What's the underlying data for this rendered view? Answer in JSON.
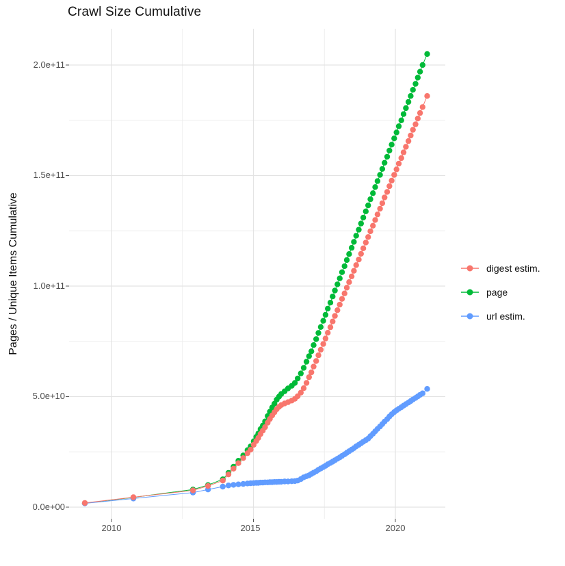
{
  "window": {
    "title": "Crawl Size Cumulative plot"
  },
  "colors": {
    "series_digest": "#F8766D",
    "series_page": "#00BA38",
    "series_url": "#619CFF",
    "grid_major": "#E3E3E3",
    "grid_minor": "#EDEDED",
    "axis_text": "#4d4d4d",
    "tick_mark": "#555555",
    "background": "#FFFFFF"
  },
  "chart_data": {
    "type": "line",
    "title": "Crawl Size Cumulative",
    "xlabel": "",
    "ylabel": "Pages / Unique Items Cumulative",
    "value_unit": "billions (1e9) of pages / unique items",
    "x_range_years": [
      2008.5,
      2021.75
    ],
    "y_range_billions": [
      -8,
      216
    ],
    "x_ticks": [
      2010,
      2015,
      2020
    ],
    "x_tick_labels": [
      "2010",
      "2015",
      "2020"
    ],
    "x_minor_ticks": [
      2012.5,
      2017.5
    ],
    "y_ticks_billions": [
      0,
      50,
      100,
      150,
      200
    ],
    "y_tick_labels": [
      "0.0e+00",
      "5.0e+10",
      "1.0e+11",
      "1.5e+11",
      "2.0e+11"
    ],
    "y_minor_ticks_billions": [
      25,
      75,
      125,
      175
    ],
    "grid": "on",
    "legend_position": "right",
    "legend": [
      {
        "label": "digest estim.",
        "color": "#F8766D"
      },
      {
        "label": "page",
        "color": "#00BA38"
      },
      {
        "label": "url estim.",
        "color": "#619CFF"
      }
    ],
    "series": [
      {
        "name": "page",
        "color": "#00BA38",
        "points": [
          [
            2009.06,
            1.8
          ],
          [
            2010.77,
            4.4
          ],
          [
            2012.87,
            8.0
          ],
          [
            2013.4,
            10.0
          ],
          [
            2013.92,
            12.6
          ],
          [
            2014.12,
            15.5
          ],
          [
            2014.3,
            18.3
          ],
          [
            2014.47,
            21.0
          ],
          [
            2014.64,
            23.4
          ],
          [
            2014.79,
            25.8
          ],
          [
            2014.9,
            27.5
          ],
          [
            2015.01,
            29.8
          ],
          [
            2015.1,
            31.8
          ],
          [
            2015.17,
            33.3
          ],
          [
            2015.25,
            35.3
          ],
          [
            2015.33,
            36.9
          ],
          [
            2015.41,
            38.8
          ],
          [
            2015.5,
            41.2
          ],
          [
            2015.58,
            43.2
          ],
          [
            2015.66,
            45.1
          ],
          [
            2015.74,
            46.8
          ],
          [
            2015.82,
            48.6
          ],
          [
            2015.9,
            50.0
          ],
          [
            2015.98,
            51.2
          ],
          [
            2016.1,
            52.4
          ],
          [
            2016.22,
            53.7
          ],
          [
            2016.35,
            54.9
          ],
          [
            2016.46,
            56.2
          ],
          [
            2016.56,
            58.2
          ],
          [
            2016.67,
            60.5
          ],
          [
            2016.77,
            63.0
          ],
          [
            2016.87,
            65.8
          ],
          [
            2016.96,
            68.3
          ],
          [
            2017.04,
            70.5
          ],
          [
            2017.12,
            73.3
          ],
          [
            2017.21,
            76.0
          ],
          [
            2017.29,
            78.8
          ],
          [
            2017.37,
            81.5
          ],
          [
            2017.46,
            84.3
          ],
          [
            2017.54,
            87.0
          ],
          [
            2017.62,
            89.8
          ],
          [
            2017.71,
            92.5
          ],
          [
            2017.79,
            95.3
          ],
          [
            2017.87,
            98.0
          ],
          [
            2017.96,
            100.8
          ],
          [
            2018.04,
            103.5
          ],
          [
            2018.12,
            106.3
          ],
          [
            2018.21,
            109.0
          ],
          [
            2018.29,
            111.8
          ],
          [
            2018.37,
            114.5
          ],
          [
            2018.46,
            117.3
          ],
          [
            2018.54,
            120.0
          ],
          [
            2018.62,
            122.8
          ],
          [
            2018.71,
            125.5
          ],
          [
            2018.79,
            128.3
          ],
          [
            2018.87,
            131.0
          ],
          [
            2018.96,
            133.8
          ],
          [
            2019.04,
            136.5
          ],
          [
            2019.12,
            139.3
          ],
          [
            2019.21,
            142.0
          ],
          [
            2019.29,
            144.8
          ],
          [
            2019.37,
            147.5
          ],
          [
            2019.46,
            150.3
          ],
          [
            2019.54,
            153.0
          ],
          [
            2019.62,
            155.8
          ],
          [
            2019.71,
            158.5
          ],
          [
            2019.79,
            161.3
          ],
          [
            2019.87,
            164.0
          ],
          [
            2019.96,
            166.8
          ],
          [
            2020.04,
            169.5
          ],
          [
            2020.12,
            172.3
          ],
          [
            2020.21,
            175.0
          ],
          [
            2020.29,
            177.8
          ],
          [
            2020.37,
            180.5
          ],
          [
            2020.46,
            183.3
          ],
          [
            2020.54,
            186.0
          ],
          [
            2020.62,
            188.8
          ],
          [
            2020.71,
            191.5
          ],
          [
            2020.79,
            194.3
          ],
          [
            2020.87,
            197.0
          ],
          [
            2020.96,
            200.0
          ],
          [
            2021.12,
            205.0
          ]
        ]
      },
      {
        "name": "url estim.",
        "color": "#619CFF",
        "points": [
          [
            2009.06,
            1.7
          ],
          [
            2010.77,
            3.9
          ],
          [
            2012.87,
            6.6
          ],
          [
            2013.4,
            8.0
          ],
          [
            2013.92,
            9.3
          ],
          [
            2014.12,
            9.8
          ],
          [
            2014.3,
            10.1
          ],
          [
            2014.47,
            10.3
          ],
          [
            2014.64,
            10.5
          ],
          [
            2014.79,
            10.7
          ],
          [
            2014.9,
            10.8
          ],
          [
            2015.01,
            10.9
          ],
          [
            2015.1,
            11.0
          ],
          [
            2015.17,
            11.0
          ],
          [
            2015.25,
            11.1
          ],
          [
            2015.33,
            11.1
          ],
          [
            2015.41,
            11.2
          ],
          [
            2015.5,
            11.2
          ],
          [
            2015.58,
            11.3
          ],
          [
            2015.66,
            11.3
          ],
          [
            2015.74,
            11.4
          ],
          [
            2015.82,
            11.4
          ],
          [
            2015.9,
            11.5
          ],
          [
            2015.98,
            11.5
          ],
          [
            2016.1,
            11.6
          ],
          [
            2016.22,
            11.6
          ],
          [
            2016.35,
            11.7
          ],
          [
            2016.46,
            11.8
          ],
          [
            2016.56,
            12.0
          ],
          [
            2016.67,
            12.7
          ],
          [
            2016.77,
            13.5
          ],
          [
            2016.87,
            14.0
          ],
          [
            2016.96,
            14.4
          ],
          [
            2017.04,
            15.0
          ],
          [
            2017.12,
            15.6
          ],
          [
            2017.21,
            16.2
          ],
          [
            2017.29,
            16.9
          ],
          [
            2017.37,
            17.5
          ],
          [
            2017.46,
            18.1
          ],
          [
            2017.54,
            18.7
          ],
          [
            2017.62,
            19.4
          ],
          [
            2017.71,
            20.0
          ],
          [
            2017.79,
            20.6
          ],
          [
            2017.87,
            21.2
          ],
          [
            2017.96,
            21.9
          ],
          [
            2018.04,
            22.5
          ],
          [
            2018.12,
            23.2
          ],
          [
            2018.21,
            23.9
          ],
          [
            2018.29,
            24.6
          ],
          [
            2018.37,
            25.3
          ],
          [
            2018.46,
            26.0
          ],
          [
            2018.54,
            26.7
          ],
          [
            2018.62,
            27.5
          ],
          [
            2018.71,
            28.2
          ],
          [
            2018.79,
            28.9
          ],
          [
            2018.87,
            29.6
          ],
          [
            2018.96,
            30.3
          ],
          [
            2019.04,
            31.0
          ],
          [
            2019.12,
            32.1
          ],
          [
            2019.21,
            33.2
          ],
          [
            2019.29,
            34.3
          ],
          [
            2019.37,
            35.4
          ],
          [
            2019.46,
            36.5
          ],
          [
            2019.54,
            37.6
          ],
          [
            2019.62,
            38.7
          ],
          [
            2019.71,
            39.8
          ],
          [
            2019.79,
            41.0
          ],
          [
            2019.87,
            42.0
          ],
          [
            2019.96,
            43.0
          ],
          [
            2020.04,
            43.8
          ],
          [
            2020.12,
            44.5
          ],
          [
            2020.21,
            45.2
          ],
          [
            2020.29,
            45.9
          ],
          [
            2020.37,
            46.6
          ],
          [
            2020.46,
            47.3
          ],
          [
            2020.54,
            48.0
          ],
          [
            2020.62,
            48.7
          ],
          [
            2020.71,
            49.4
          ],
          [
            2020.79,
            50.1
          ],
          [
            2020.87,
            50.8
          ],
          [
            2020.96,
            51.5
          ],
          [
            2021.12,
            53.5
          ]
        ]
      },
      {
        "name": "digest estim.",
        "color": "#F8766D",
        "points": [
          [
            2009.06,
            1.9
          ],
          [
            2010.77,
            4.5
          ],
          [
            2012.87,
            7.6
          ],
          [
            2013.4,
            9.6
          ],
          [
            2013.92,
            12.0
          ],
          [
            2014.12,
            14.8
          ],
          [
            2014.3,
            17.4
          ],
          [
            2014.47,
            19.9
          ],
          [
            2014.64,
            22.2
          ],
          [
            2014.79,
            24.4
          ],
          [
            2014.9,
            26.0
          ],
          [
            2015.01,
            28.2
          ],
          [
            2015.1,
            29.9
          ],
          [
            2015.17,
            31.3
          ],
          [
            2015.25,
            33.1
          ],
          [
            2015.33,
            34.6
          ],
          [
            2015.41,
            36.2
          ],
          [
            2015.5,
            38.2
          ],
          [
            2015.58,
            39.9
          ],
          [
            2015.66,
            41.5
          ],
          [
            2015.74,
            42.9
          ],
          [
            2015.82,
            44.3
          ],
          [
            2015.9,
            45.4
          ],
          [
            2015.98,
            46.2
          ],
          [
            2016.1,
            46.9
          ],
          [
            2016.22,
            47.5
          ],
          [
            2016.35,
            48.2
          ],
          [
            2016.46,
            49.0
          ],
          [
            2016.56,
            50.2
          ],
          [
            2016.67,
            51.8
          ],
          [
            2016.77,
            53.8
          ],
          [
            2016.87,
            56.2
          ],
          [
            2016.96,
            58.8
          ],
          [
            2017.04,
            61.0
          ],
          [
            2017.12,
            63.6
          ],
          [
            2017.21,
            66.1
          ],
          [
            2017.29,
            68.7
          ],
          [
            2017.37,
            71.2
          ],
          [
            2017.46,
            73.8
          ],
          [
            2017.54,
            76.3
          ],
          [
            2017.62,
            78.9
          ],
          [
            2017.71,
            81.4
          ],
          [
            2017.79,
            84.0
          ],
          [
            2017.87,
            86.5
          ],
          [
            2017.96,
            89.1
          ],
          [
            2018.04,
            91.6
          ],
          [
            2018.12,
            94.2
          ],
          [
            2018.21,
            96.7
          ],
          [
            2018.29,
            99.3
          ],
          [
            2018.37,
            101.8
          ],
          [
            2018.46,
            104.4
          ],
          [
            2018.54,
            106.9
          ],
          [
            2018.62,
            109.5
          ],
          [
            2018.71,
            112.0
          ],
          [
            2018.79,
            114.6
          ],
          [
            2018.87,
            117.1
          ],
          [
            2018.96,
            119.7
          ],
          [
            2019.04,
            122.2
          ],
          [
            2019.12,
            124.8
          ],
          [
            2019.21,
            127.3
          ],
          [
            2019.29,
            129.9
          ],
          [
            2019.37,
            132.4
          ],
          [
            2019.46,
            135.0
          ],
          [
            2019.54,
            137.5
          ],
          [
            2019.62,
            140.1
          ],
          [
            2019.71,
            142.6
          ],
          [
            2019.79,
            145.2
          ],
          [
            2019.87,
            147.7
          ],
          [
            2019.96,
            150.3
          ],
          [
            2020.04,
            152.8
          ],
          [
            2020.12,
            155.4
          ],
          [
            2020.21,
            157.9
          ],
          [
            2020.29,
            160.5
          ],
          [
            2020.37,
            163.0
          ],
          [
            2020.46,
            165.6
          ],
          [
            2020.54,
            168.1
          ],
          [
            2020.62,
            170.7
          ],
          [
            2020.71,
            173.2
          ],
          [
            2020.79,
            175.8
          ],
          [
            2020.87,
            178.3
          ],
          [
            2020.96,
            181.0
          ],
          [
            2021.12,
            186.0
          ]
        ]
      }
    ]
  }
}
